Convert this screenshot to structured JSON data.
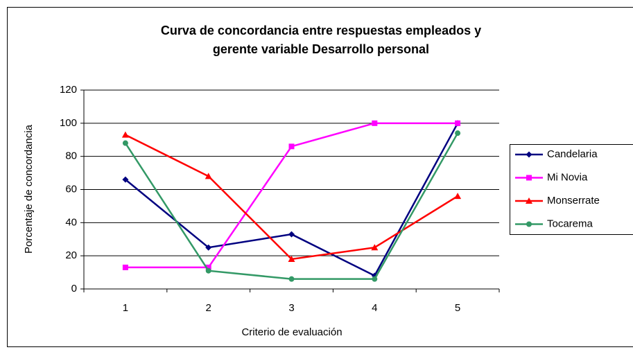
{
  "chart_data": {
    "type": "line",
    "title": [
      "Curva de concordancia entre respuestas empleados y",
      "gerente variable Desarrollo personal"
    ],
    "xlabel": "Criterio de evaluación",
    "ylabel": "Porcentaje de concordancia",
    "categories": [
      1,
      2,
      3,
      4,
      5
    ],
    "series": [
      {
        "name": "Candelaria",
        "color": "#000080",
        "marker": "diamond",
        "values": [
          66,
          25,
          33,
          8,
          100
        ]
      },
      {
        "name": "Mi Novia",
        "color": "#ff00ff",
        "marker": "square",
        "values": [
          13,
          13,
          86,
          100,
          100
        ]
      },
      {
        "name": "Monserrate",
        "color": "#ff0000",
        "marker": "triangle",
        "values": [
          93,
          68,
          18,
          25,
          56
        ]
      },
      {
        "name": "Tocarema",
        "color": "#339966",
        "marker": "circle",
        "values": [
          88,
          11,
          6,
          6,
          94
        ]
      }
    ],
    "ylim": [
      0,
      120
    ],
    "yticks": [
      0,
      20,
      40,
      60,
      80,
      100,
      120
    ],
    "grid": true,
    "legend": "right"
  }
}
